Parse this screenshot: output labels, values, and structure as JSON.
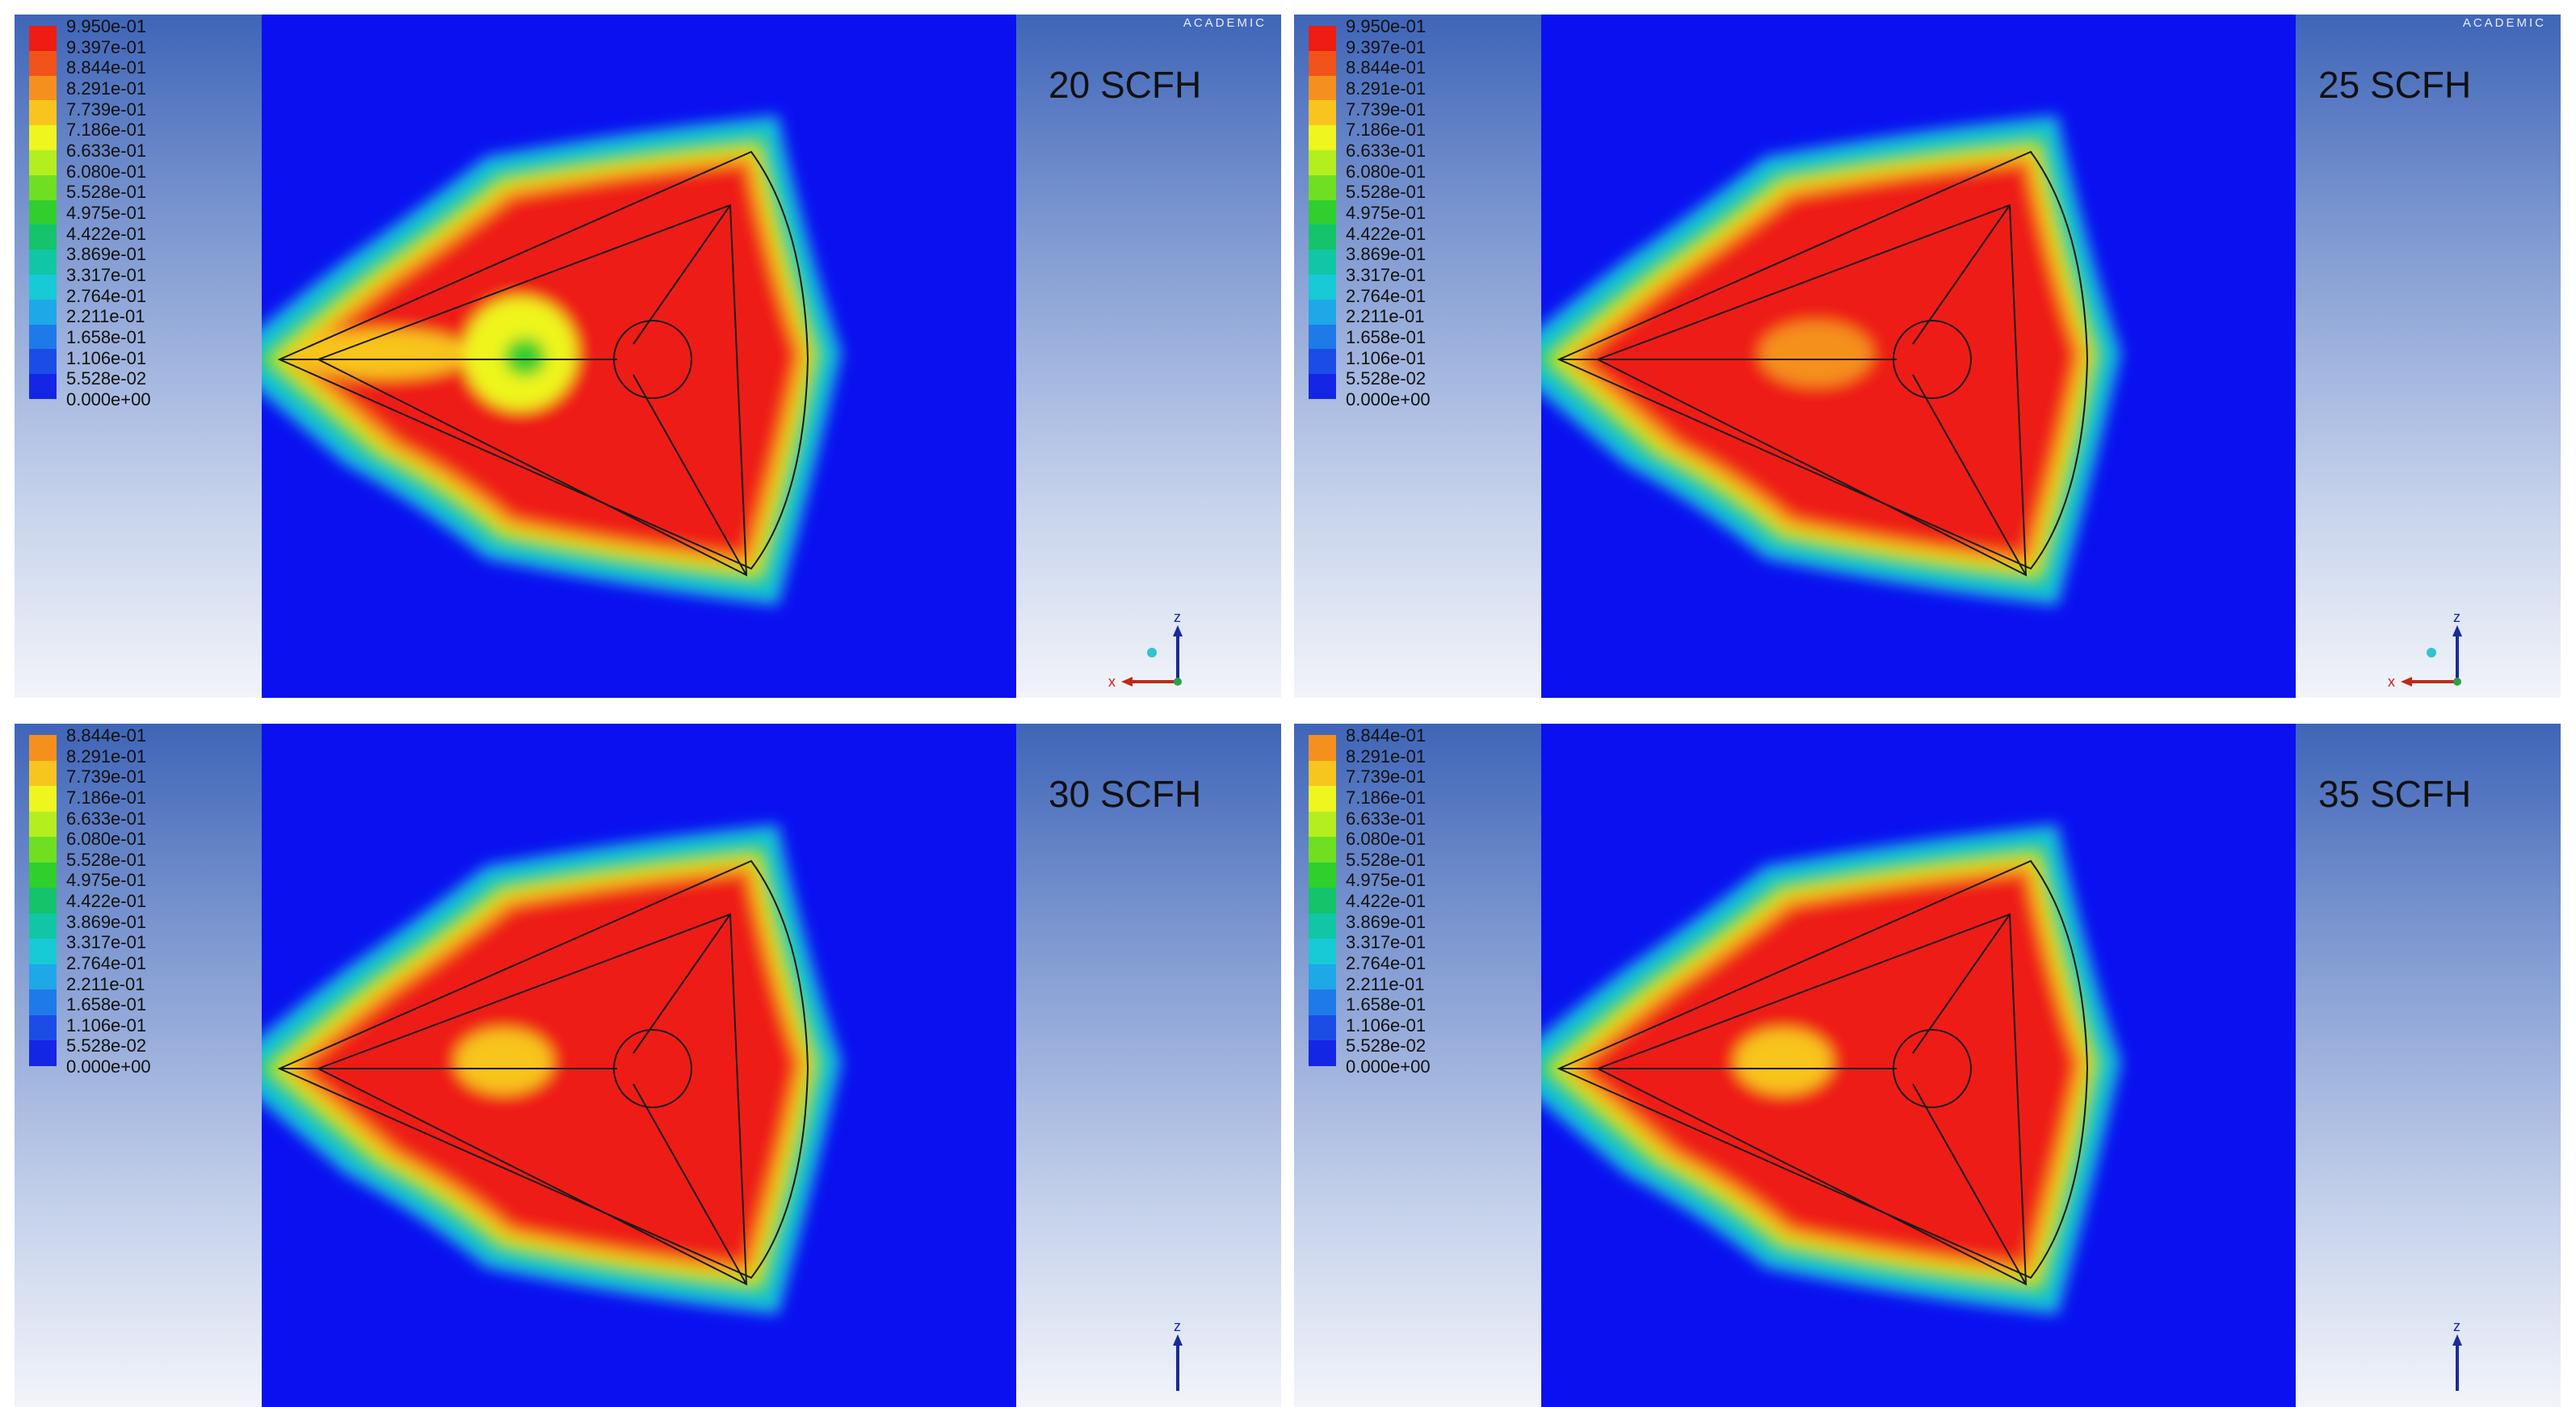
{
  "panels": [
    {
      "label": "20 SCFH",
      "watermark": "ACADEMIC",
      "show_triad": true,
      "triad": {
        "z": "z",
        "x": "x"
      },
      "legend": [
        "9.950e-01",
        "9.397e-01",
        "8.844e-01",
        "8.291e-01",
        "7.739e-01",
        "7.186e-01",
        "6.633e-01",
        "6.080e-01",
        "5.528e-01",
        "4.975e-01",
        "4.422e-01",
        "3.869e-01",
        "3.317e-01",
        "2.764e-01",
        "2.211e-01",
        "1.658e-01",
        "1.106e-01",
        "5.528e-02",
        "0.000e+00"
      ],
      "field": "20"
    },
    {
      "label": "25 SCFH",
      "watermark": "ACADEMIC",
      "show_triad": true,
      "triad": {
        "z": "z",
        "x": "x"
      },
      "legend": [
        "9.950e-01",
        "9.397e-01",
        "8.844e-01",
        "8.291e-01",
        "7.739e-01",
        "7.186e-01",
        "6.633e-01",
        "6.080e-01",
        "5.528e-01",
        "4.975e-01",
        "4.422e-01",
        "3.869e-01",
        "3.317e-01",
        "2.764e-01",
        "2.211e-01",
        "1.658e-01",
        "1.106e-01",
        "5.528e-02",
        "0.000e+00"
      ],
      "field": "25"
    },
    {
      "label": "30 SCFH",
      "watermark": "",
      "show_triad": false,
      "triad": {
        "z": "z",
        "x": ""
      },
      "legend": [
        "8.844e-01",
        "8.291e-01",
        "7.739e-01",
        "7.186e-01",
        "6.633e-01",
        "6.080e-01",
        "5.528e-01",
        "4.975e-01",
        "4.422e-01",
        "3.869e-01",
        "3.317e-01",
        "2.764e-01",
        "2.211e-01",
        "1.658e-01",
        "1.106e-01",
        "5.528e-02",
        "0.000e+00"
      ],
      "field": "30"
    },
    {
      "label": "35 SCFH",
      "watermark": "",
      "show_triad": false,
      "triad": {
        "z": "z",
        "x": ""
      },
      "legend": [
        "8.844e-01",
        "8.291e-01",
        "7.739e-01",
        "7.186e-01",
        "6.633e-01",
        "6.080e-01",
        "5.528e-01",
        "4.975e-01",
        "4.422e-01",
        "3.869e-01",
        "3.317e-01",
        "2.764e-01",
        "2.211e-01",
        "1.658e-01",
        "1.106e-01",
        "5.528e-02",
        "0.000e+00"
      ],
      "field": "35"
    }
  ],
  "colors": {
    "background": "#0a10f0",
    "scale": [
      "#ee1c12",
      "#f2531a",
      "#f5901f",
      "#f8c51f",
      "#eef51f",
      "#b5ee1f",
      "#6fdf22",
      "#2fcf2e",
      "#14c36a",
      "#11c6a4",
      "#18c9d6",
      "#1ea8e8",
      "#1f7ae9",
      "#1c4ce6",
      "#1426e3"
    ]
  }
}
